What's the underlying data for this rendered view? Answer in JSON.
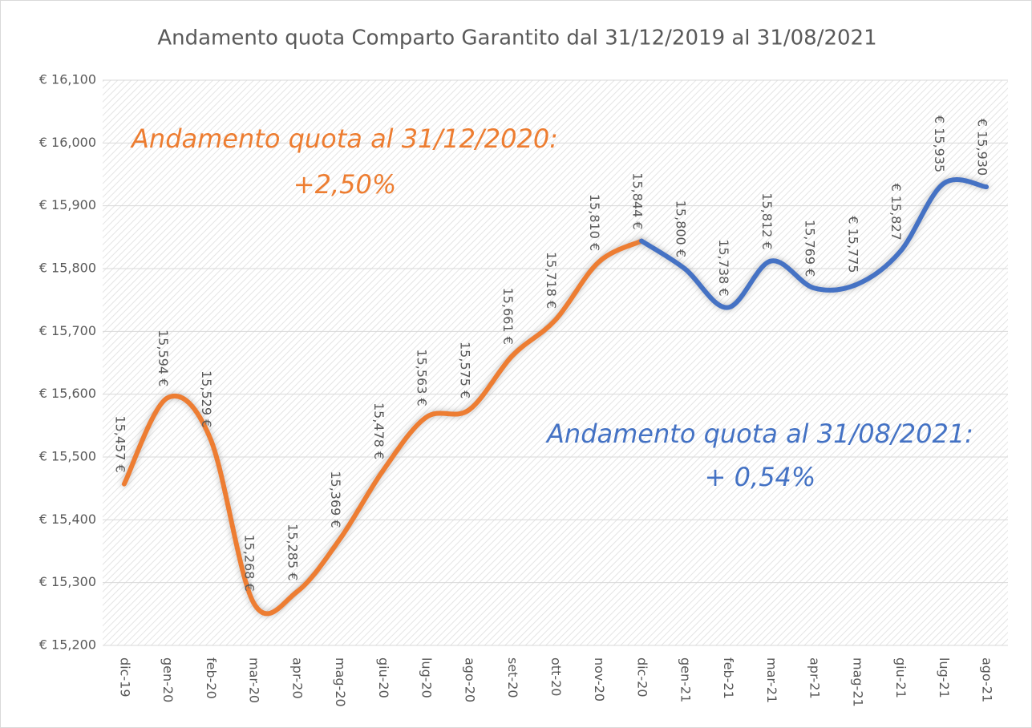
{
  "chart_data": {
    "type": "line",
    "title": "Andamento quota Comparto Garantito dal 31/12/2019 al 31/08/2021",
    "categories": [
      "dic-19",
      "gen-20",
      "feb-20",
      "mar-20",
      "apr-20",
      "mag-20",
      "giu-20",
      "lug-20",
      "ago-20",
      "set-20",
      "ott-20",
      "nov-20",
      "dic-20",
      "gen-21",
      "feb-21",
      "mar-21",
      "apr-21",
      "mag-21",
      "giu-21",
      "lug-21",
      "ago-21"
    ],
    "series": [
      {
        "color": "#ed7d31",
        "values": [
          15.457,
          15.594,
          15.529,
          15.268,
          15.285,
          15.369,
          15.478,
          15.563,
          15.575,
          15.661,
          15.718,
          15.81,
          15.844,
          null,
          null,
          null,
          null,
          null,
          null,
          null,
          null
        ],
        "value_labels": [
          "15,457 €",
          "15,594 €",
          "15,529 €",
          "15,268 €",
          "15,285 €",
          "15,369 €",
          "15,478 €",
          "15,563 €",
          "15,575 €",
          "15,661 €",
          "15,718 €",
          "15,810 €",
          "15,844 €",
          null,
          null,
          null,
          null,
          null,
          null,
          null,
          null
        ]
      },
      {
        "color": "#4472c4",
        "values": [
          null,
          null,
          null,
          null,
          null,
          null,
          null,
          null,
          null,
          null,
          null,
          null,
          15.844,
          15.8,
          15.738,
          15.812,
          15.769,
          15.775,
          15.827,
          15.935,
          15.93
        ],
        "value_labels": [
          null,
          null,
          null,
          null,
          null,
          null,
          null,
          null,
          null,
          null,
          null,
          null,
          null,
          "15,800 €",
          "15,738 €",
          "15,812 €",
          "15,769 €",
          "€ 15,775",
          "€ 15,827",
          "€ 15,935",
          "€ 15,930"
        ]
      }
    ],
    "ylim": [
      15.2,
      16.1
    ],
    "yticks": [
      {
        "value": 15.2,
        "label": "€ 15,200"
      },
      {
        "value": 15.3,
        "label": "€ 15,300"
      },
      {
        "value": 15.4,
        "label": "€ 15,400"
      },
      {
        "value": 15.5,
        "label": "€ 15,500"
      },
      {
        "value": 15.6,
        "label": "€ 15,600"
      },
      {
        "value": 15.7,
        "label": "€ 15,700"
      },
      {
        "value": 15.8,
        "label": "€ 15,800"
      },
      {
        "value": 15.9,
        "label": "€ 15,900"
      },
      {
        "value": 16.0,
        "label": "€ 16,000"
      },
      {
        "value": 16.1,
        "label": "€ 16,100"
      }
    ],
    "grid": true,
    "annotations": [
      {
        "text": "Andamento quota al 31/12/2020:",
        "color": "#ed7d31"
      },
      {
        "text": "+2,50%",
        "color": "#ed7d31"
      },
      {
        "text": "Andamento quota al 31/08/2021:",
        "color": "#4472c4"
      },
      {
        "text": "+ 0,54%",
        "color": "#4472c4"
      }
    ]
  }
}
